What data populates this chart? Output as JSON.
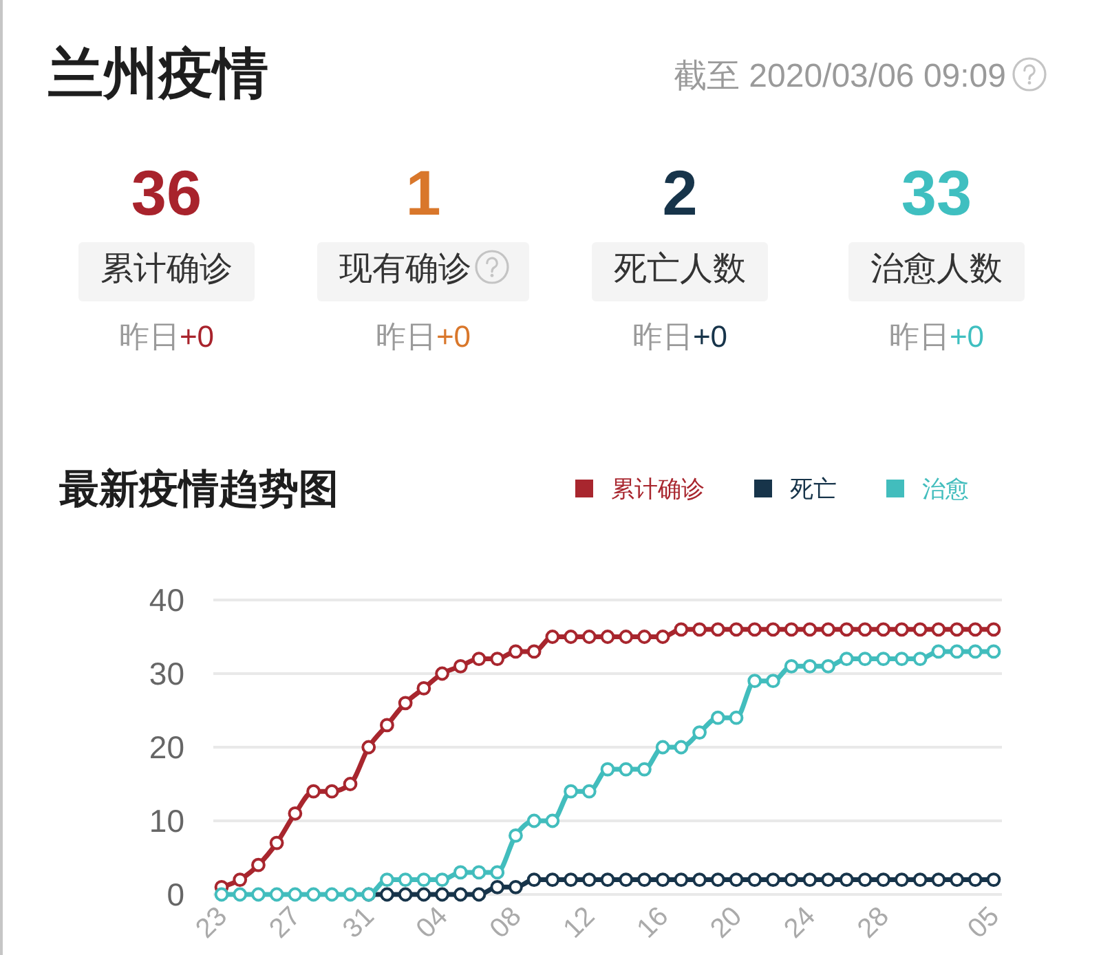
{
  "chart_data": [
    {
      "type": "other",
      "title": "兰州疫情",
      "subtitle": "截至 2020/03/06 09:09",
      "categories": [
        "累计确诊",
        "现有确诊",
        "死亡人数",
        "治愈人数"
      ],
      "values": [
        36,
        1,
        2,
        33
      ],
      "data_labels": true,
      "colors": [
        "#a8232c",
        "#d9772b",
        "#17344a",
        "#3fbfc0"
      ],
      "annotations": [
        "昨日",
        "+0",
        "昨日",
        "+0",
        "昨日",
        "+0",
        "昨日",
        "+0"
      ]
    },
    {
      "type": "line",
      "title": "最新疫情趋势图",
      "categories": [
        "23",
        null,
        null,
        null,
        "27",
        null,
        null,
        null,
        "31",
        null,
        null,
        null,
        "04",
        null,
        null,
        null,
        "08",
        null,
        null,
        null,
        "12",
        null,
        null,
        null,
        "16",
        null,
        null,
        null,
        "20",
        null,
        null,
        null,
        "24",
        null,
        null,
        null,
        "28",
        null,
        null,
        null,
        null,
        null,
        "05"
      ],
      "series": [
        {
          "name": "累计确诊",
          "color": "#a8262e",
          "values": [
            1,
            2,
            4,
            7,
            11,
            14,
            14,
            15,
            20,
            23,
            26,
            28,
            30,
            31,
            32,
            32,
            33,
            33,
            35,
            35,
            35,
            35,
            35,
            35,
            35,
            36,
            36,
            36,
            36,
            36,
            36,
            36,
            36,
            36,
            36,
            36,
            36,
            36,
            36,
            36,
            36,
            36,
            36
          ]
        },
        {
          "name": "死亡",
          "color": "#17344a",
          "values": [
            null,
            null,
            null,
            null,
            null,
            null,
            null,
            null,
            0,
            0,
            0,
            0,
            0,
            0,
            0,
            1,
            1,
            2,
            2,
            2,
            2,
            2,
            2,
            2,
            2,
            2,
            2,
            2,
            2,
            2,
            2,
            2,
            2,
            2,
            2,
            2,
            2,
            2,
            2,
            2,
            2,
            2,
            2
          ]
        },
        {
          "name": "治愈",
          "color": "#42bdbd",
          "values": [
            0,
            0,
            0,
            0,
            0,
            0,
            0,
            0,
            0,
            2,
            2,
            2,
            2,
            3,
            3,
            3,
            8,
            10,
            10,
            14,
            14,
            17,
            17,
            17,
            20,
            20,
            22,
            24,
            24,
            29,
            29,
            31,
            31,
            31,
            32,
            32,
            32,
            32,
            32,
            33,
            33,
            33,
            33
          ]
        }
      ],
      "ylim": [
        0,
        40
      ],
      "yticks": [
        0,
        10,
        20,
        30,
        40
      ],
      "grid": "y",
      "legend": "top right",
      "marker": "circle"
    }
  ]
}
